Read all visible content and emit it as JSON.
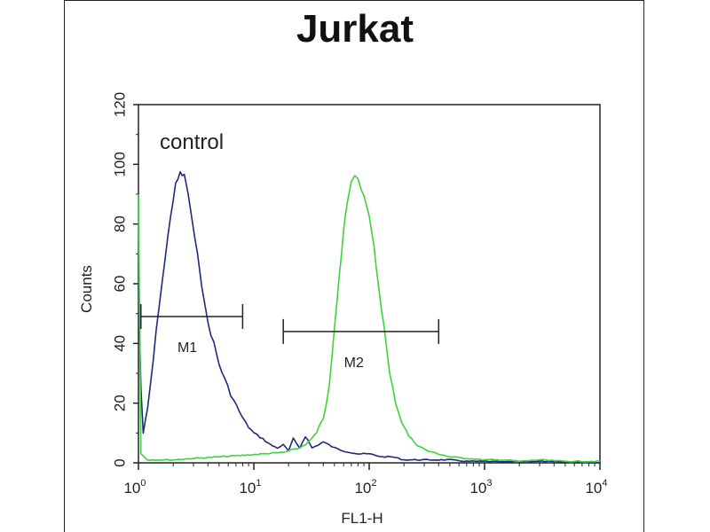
{
  "chart_data": {
    "type": "line",
    "title": "Jurkat",
    "xlabel": "FL1-H",
    "ylabel": "Counts",
    "x_scale": "log10",
    "xlim": [
      1,
      10000
    ],
    "ylim": [
      0,
      120
    ],
    "y_ticks": [
      "0",
      "20",
      "40",
      "60",
      "80",
      "100",
      "120"
    ],
    "x_ticks": [
      {
        "base": "10",
        "exp": "0"
      },
      {
        "base": "10",
        "exp": "1"
      },
      {
        "base": "10",
        "exp": "2"
      },
      {
        "base": "10",
        "exp": "3"
      },
      {
        "base": "10",
        "exp": "4"
      }
    ],
    "series": [
      {
        "name": "control",
        "color": "#1f2a7a",
        "x": [
          1,
          1.05,
          1.1,
          1.2,
          1.35,
          1.5,
          1.7,
          1.9,
          2.1,
          2.3,
          2.5,
          2.7,
          2.9,
          3.1,
          3.4,
          3.7,
          4.0,
          4.5,
          5.0,
          5.6,
          6.3,
          7.1,
          8.0,
          9.0,
          10,
          12,
          14,
          16,
          18,
          20,
          22,
          25,
          28,
          32,
          36,
          40,
          50,
          60,
          80,
          100,
          130,
          160,
          200,
          250,
          320,
          400,
          500,
          700,
          1000,
          1500,
          2000,
          3000,
          5000,
          10000
        ],
        "y": [
          60,
          25,
          10,
          18,
          35,
          52,
          68,
          83,
          93,
          97,
          96,
          90,
          82,
          74,
          65,
          54,
          47,
          40,
          33,
          28,
          23,
          19,
          15,
          12,
          10,
          8,
          6,
          5,
          6,
          4,
          8,
          5,
          9,
          5,
          6,
          7,
          5,
          4,
          3,
          3,
          2,
          2,
          1,
          1,
          1,
          1,
          1,
          0.5,
          0.5,
          0.3,
          0.5,
          0.5,
          0.3,
          0
        ]
      },
      {
        "name": "",
        "color": "#3cd43c",
        "x": [
          1,
          1.05,
          1.2,
          1.5,
          2,
          3,
          5,
          8,
          12,
          18,
          25,
          30,
          35,
          40,
          45,
          50,
          55,
          60,
          65,
          70,
          75,
          80,
          90,
          100,
          110,
          120,
          135,
          150,
          170,
          190,
          220,
          260,
          320,
          400,
          500,
          700,
          1000,
          1500,
          2000,
          3000,
          5000,
          10000
        ],
        "y": [
          90,
          3,
          1,
          1,
          1,
          1.5,
          2,
          2.5,
          3,
          3.5,
          5,
          7,
          10,
          15,
          25,
          45,
          62,
          78,
          88,
          95,
          97,
          95,
          90,
          82,
          72,
          60,
          45,
          30,
          20,
          14,
          9,
          6,
          4,
          3,
          2,
          1.5,
          1,
          1,
          0.5,
          1,
          0.5,
          0.5
        ]
      }
    ],
    "annotations": {
      "control_label": "control",
      "markers": [
        {
          "label": "M1",
          "x_start": 1.05,
          "x_end": 8,
          "y": 49
        },
        {
          "label": "M2",
          "x_start": 18,
          "x_end": 400,
          "y": 44
        }
      ]
    },
    "grid": false
  }
}
